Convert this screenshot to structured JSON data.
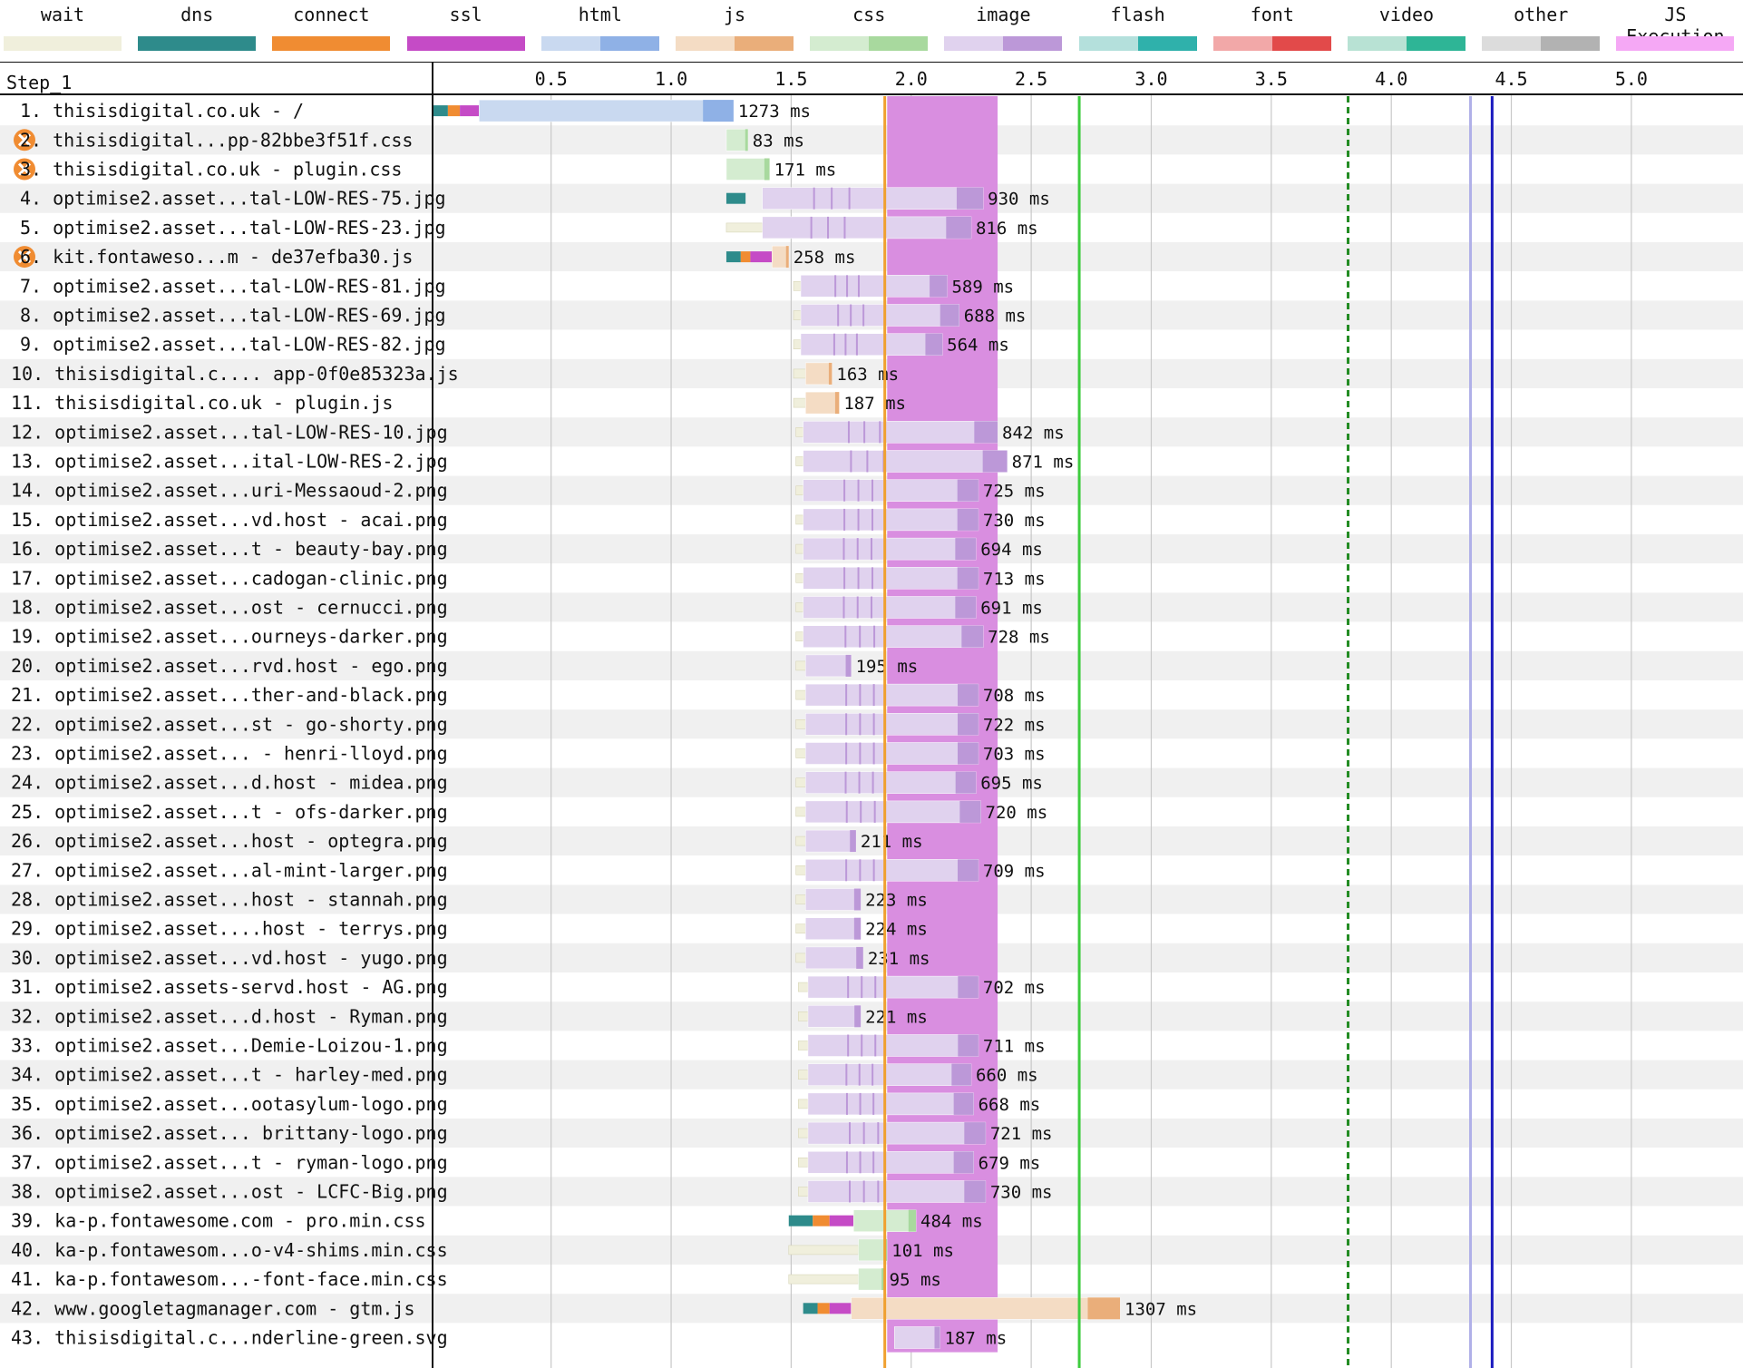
{
  "legend": [
    {
      "label": "wait",
      "colors": [
        "#f0efdc",
        "#f0efdc"
      ]
    },
    {
      "label": "dns",
      "colors": [
        "#2e8b8b",
        "#2e8b8b"
      ]
    },
    {
      "label": "connect",
      "colors": [
        "#f08c32",
        "#f08c32"
      ]
    },
    {
      "label": "ssl",
      "colors": [
        "#c54bc6",
        "#c54bc6"
      ]
    },
    {
      "label": "html",
      "colors": [
        "#c9d9f0",
        "#8fb1e6"
      ]
    },
    {
      "label": "js",
      "colors": [
        "#f4dcc4",
        "#eaae7a"
      ]
    },
    {
      "label": "css",
      "colors": [
        "#d4ecd0",
        "#a8d99e"
      ]
    },
    {
      "label": "image",
      "colors": [
        "#e0d2ee",
        "#bc98d8"
      ]
    },
    {
      "label": "flash",
      "colors": [
        "#b4e0dc",
        "#2fb1ab"
      ]
    },
    {
      "label": "font",
      "colors": [
        "#f2a8a8",
        "#e24a4a"
      ]
    },
    {
      "label": "video",
      "colors": [
        "#b8e2d4",
        "#2eb596"
      ]
    },
    {
      "label": "other",
      "colors": [
        "#dcdcdc",
        "#b2b2b2"
      ]
    },
    {
      "label": "JS Execution",
      "colors": [
        "#f5a8f5",
        "#f5a8f5"
      ]
    }
  ],
  "chart_data": {
    "type": "waterfall",
    "step_label": "Step_1",
    "x_ticks": [
      "0.5",
      "1.0",
      "1.5",
      "2.0",
      "2.5",
      "3.0",
      "3.5",
      "4.0",
      "4.5",
      "5.0"
    ],
    "x_tick_values": [
      0.5,
      1.0,
      1.5,
      2.0,
      2.5,
      3.0,
      3.5,
      4.0,
      4.5,
      5.0
    ],
    "xlim": [
      0.01,
      5.45
    ],
    "markers": [
      {
        "t": 1.89,
        "color": "#f0a030"
      },
      {
        "t": 2.7,
        "color": "#3ecc3e"
      },
      {
        "t": 3.82,
        "color": "#228b22",
        "dashed": true
      },
      {
        "t": 4.33,
        "color": "#b0b0e8"
      },
      {
        "t": 4.42,
        "color": "#1b1bbf"
      }
    ],
    "js_execution_band": {
      "start": 1.9,
      "end": 2.36,
      "color": "#d98ee0"
    },
    "requests": [
      {
        "label": "1. thisisdigital.co.uk - /",
        "time_label": "1273 ms",
        "type": "html",
        "wait": 0,
        "dns": [
          0.01,
          0.07
        ],
        "connect": [
          0.07,
          0.12
        ],
        "ssl": [
          0.12,
          0.2
        ],
        "start": 0.2,
        "end": 1.26
      },
      {
        "label": "2. thisisdigital...pp-82bbe3f51f.css",
        "time_label": "83 ms",
        "type": "css",
        "blocking": true,
        "wait": 1.23,
        "start": 1.23,
        "end": 1.32
      },
      {
        "label": "3. thisisdigital.co.uk - plugin.css",
        "time_label": "171 ms",
        "type": "css",
        "blocking": true,
        "wait": 1.23,
        "start": 1.23,
        "end": 1.41
      },
      {
        "label": "4. optimise2.asset...tal-LOW-RES-75.jpg",
        "time_label": "930 ms",
        "type": "image",
        "wait": 1.38,
        "dns": [
          1.23,
          1.31
        ],
        "start": 1.38,
        "end": 2.3
      },
      {
        "label": "5. optimise2.asset...tal-LOW-RES-23.jpg",
        "time_label": "816 ms",
        "type": "image",
        "wait": 1.23,
        "start": 1.38,
        "end": 2.25
      },
      {
        "label": "6. kit.fontaweso...m - de37efba30.js",
        "time_label": "258 ms",
        "type": "js",
        "blocking": true,
        "wait": 1.42,
        "dns": [
          1.23,
          1.29
        ],
        "connect": [
          1.29,
          1.33
        ],
        "ssl": [
          1.33,
          1.42
        ],
        "start": 1.42,
        "end": 1.49
      },
      {
        "label": "7. optimise2.asset...tal-LOW-RES-81.jpg",
        "time_label": "589 ms",
        "type": "image",
        "wait": 1.51,
        "start": 1.54,
        "end": 2.15
      },
      {
        "label": "8. optimise2.asset...tal-LOW-RES-69.jpg",
        "time_label": "688 ms",
        "type": "image",
        "wait": 1.51,
        "start": 1.54,
        "end": 2.2
      },
      {
        "label": "9. optimise2.asset...tal-LOW-RES-82.jpg",
        "time_label": "564 ms",
        "type": "image",
        "wait": 1.51,
        "start": 1.54,
        "end": 2.13
      },
      {
        "label": "10. thisisdigital.c.... app-0f0e85323a.js",
        "time_label": "163 ms",
        "type": "js",
        "wait": 1.51,
        "start": 1.56,
        "end": 1.67
      },
      {
        "label": "11. thisisdigital.co.uk - plugin.js",
        "time_label": "187 ms",
        "type": "js",
        "wait": 1.51,
        "start": 1.56,
        "end": 1.7
      },
      {
        "label": "12. optimise2.asset...tal-LOW-RES-10.jpg",
        "time_label": "842 ms",
        "type": "image",
        "wait": 1.52,
        "start": 1.55,
        "end": 2.36
      },
      {
        "label": "13. optimise2.asset...ital-LOW-RES-2.jpg",
        "time_label": "871 ms",
        "type": "image",
        "wait": 1.52,
        "start": 1.55,
        "end": 2.4
      },
      {
        "label": "14. optimise2.asset...uri-Messaoud-2.png",
        "time_label": "725 ms",
        "type": "image",
        "wait": 1.52,
        "start": 1.55,
        "end": 2.28
      },
      {
        "label": "15. optimise2.asset...vd.host - acai.png",
        "time_label": "730 ms",
        "type": "image",
        "wait": 1.52,
        "start": 1.55,
        "end": 2.28
      },
      {
        "label": "16. optimise2.asset...t - beauty-bay.png",
        "time_label": "694 ms",
        "type": "image",
        "wait": 1.52,
        "start": 1.55,
        "end": 2.27
      },
      {
        "label": "17. optimise2.asset...cadogan-clinic.png",
        "time_label": "713 ms",
        "type": "image",
        "wait": 1.52,
        "start": 1.55,
        "end": 2.28
      },
      {
        "label": "18. optimise2.asset...ost - cernucci.png",
        "time_label": "691 ms",
        "type": "image",
        "wait": 1.52,
        "start": 1.55,
        "end": 2.27
      },
      {
        "label": "19. optimise2.asset...ourneys-darker.png",
        "time_label": "728 ms",
        "type": "image",
        "wait": 1.52,
        "start": 1.55,
        "end": 2.3
      },
      {
        "label": "20. optimise2.asset...rvd.host - ego.png",
        "time_label": "195 ms",
        "type": "image",
        "wait": 1.52,
        "start": 1.56,
        "end": 1.75
      },
      {
        "label": "21. optimise2.asset...ther-and-black.png",
        "time_label": "708 ms",
        "type": "image",
        "wait": 1.52,
        "start": 1.56,
        "end": 2.28
      },
      {
        "label": "22. optimise2.asset...st - go-shorty.png",
        "time_label": "722 ms",
        "type": "image",
        "wait": 1.52,
        "start": 1.56,
        "end": 2.28
      },
      {
        "label": "23. optimise2.asset... - henri-lloyd.png",
        "time_label": "703 ms",
        "type": "image",
        "wait": 1.52,
        "start": 1.56,
        "end": 2.28
      },
      {
        "label": "24. optimise2.asset...d.host - midea.png",
        "time_label": "695 ms",
        "type": "image",
        "wait": 1.52,
        "start": 1.56,
        "end": 2.27
      },
      {
        "label": "25. optimise2.asset...t - ofs-darker.png",
        "time_label": "720 ms",
        "type": "image",
        "wait": 1.52,
        "start": 1.56,
        "end": 2.29
      },
      {
        "label": "26. optimise2.asset...host - optegra.png",
        "time_label": "211 ms",
        "type": "image",
        "wait": 1.52,
        "start": 1.56,
        "end": 1.77
      },
      {
        "label": "27. optimise2.asset...al-mint-larger.png",
        "time_label": "709 ms",
        "type": "image",
        "wait": 1.52,
        "start": 1.56,
        "end": 2.28
      },
      {
        "label": "28. optimise2.asset...host - stannah.png",
        "time_label": "223 ms",
        "type": "image",
        "wait": 1.52,
        "start": 1.56,
        "end": 1.79
      },
      {
        "label": "29. optimise2.asset....host - terrys.png",
        "time_label": "224 ms",
        "type": "image",
        "wait": 1.52,
        "start": 1.56,
        "end": 1.79
      },
      {
        "label": "30. optimise2.asset...vd.host - yugo.png",
        "time_label": "231 ms",
        "type": "image",
        "wait": 1.52,
        "start": 1.56,
        "end": 1.8
      },
      {
        "label": "31. optimise2.assets-servd.host - AG.png",
        "time_label": "702 ms",
        "type": "image",
        "wait": 1.53,
        "start": 1.57,
        "end": 2.28
      },
      {
        "label": "32. optimise2.asset...d.host - Ryman.png",
        "time_label": "221 ms",
        "type": "image",
        "wait": 1.53,
        "start": 1.57,
        "end": 1.79
      },
      {
        "label": "33. optimise2.asset...Demie-Loizou-1.png",
        "time_label": "711 ms",
        "type": "image",
        "wait": 1.53,
        "start": 1.57,
        "end": 2.28
      },
      {
        "label": "34. optimise2.asset...t - harley-med.png",
        "time_label": "660 ms",
        "type": "image",
        "wait": 1.53,
        "start": 1.57,
        "end": 2.25
      },
      {
        "label": "35. optimise2.asset...ootasylum-logo.png",
        "time_label": "668 ms",
        "type": "image",
        "wait": 1.53,
        "start": 1.57,
        "end": 2.26
      },
      {
        "label": "36. optimise2.asset... brittany-logo.png",
        "time_label": "721 ms",
        "type": "image",
        "wait": 1.53,
        "start": 1.57,
        "end": 2.31
      },
      {
        "label": "37. optimise2.asset...t - ryman-logo.png",
        "time_label": "679 ms",
        "type": "image",
        "wait": 1.53,
        "start": 1.57,
        "end": 2.26
      },
      {
        "label": "38. optimise2.asset...ost - LCFC-Big.png",
        "time_label": "730 ms",
        "type": "image",
        "wait": 1.53,
        "start": 1.57,
        "end": 2.31
      },
      {
        "label": "39. ka-p.fontawesome.com - pro.min.css",
        "time_label": "484 ms",
        "type": "css",
        "wait": 1.76,
        "dns": [
          1.49,
          1.59
        ],
        "connect": [
          1.59,
          1.66
        ],
        "ssl": [
          1.66,
          1.76
        ],
        "start": 1.76,
        "end": 2.02
      },
      {
        "label": "40. ka-p.fontawesom...o-v4-shims.min.css",
        "time_label": "101 ms",
        "type": "css",
        "wait": 1.49,
        "start": 1.78,
        "end": 1.9
      },
      {
        "label": "41. ka-p.fontawesom...-font-face.min.css",
        "time_label": "95 ms",
        "type": "css",
        "wait": 1.49,
        "start": 1.78,
        "end": 1.89
      },
      {
        "label": "42. www.googletagmanager.com - gtm.js",
        "time_label": "1307 ms",
        "type": "js",
        "wait": 1.75,
        "dns": [
          1.55,
          1.61
        ],
        "connect": [
          1.61,
          1.66
        ],
        "ssl": [
          1.66,
          1.75
        ],
        "start": 1.75,
        "end": 2.87
      },
      {
        "label": "43. thisisdigital.c...nderline-green.svg",
        "time_label": "187 ms",
        "type": "image",
        "wait": 1.93,
        "start": 1.93,
        "end": 2.12
      }
    ]
  }
}
